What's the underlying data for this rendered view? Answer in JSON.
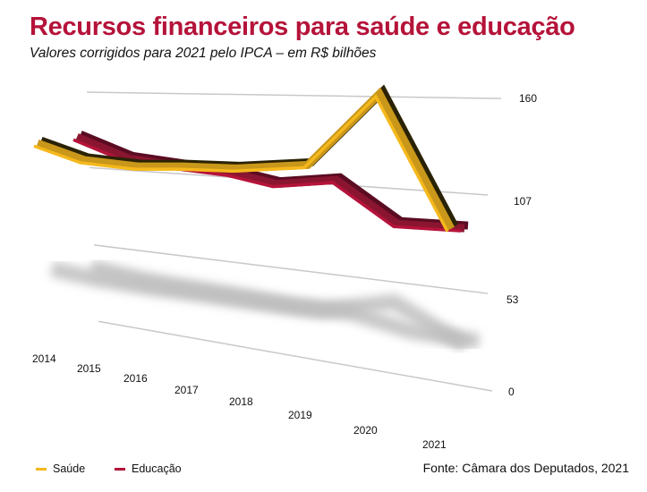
{
  "chart_data": {
    "type": "line",
    "title": "Recursos financeiros para saúde e educação",
    "subtitle": "Valores corrigidos para 2021 pelo IPCA – em R$ bilhões",
    "categories": [
      "2014",
      "2015",
      "2016",
      "2017",
      "2018",
      "2019",
      "2020",
      "2021"
    ],
    "yticks": [
      "0",
      "53",
      "107",
      "160"
    ],
    "ylim": [
      0,
      160
    ],
    "series": [
      {
        "name": "Saúde",
        "color": "#f5b81c",
        "values": [
          120,
          110,
          108,
          110,
          111,
          116,
          160,
          85
        ]
      },
      {
        "name": "Educação",
        "color": "#b5133a",
        "values": [
          126,
          113,
          110,
          108,
          103,
          108,
          85,
          86
        ]
      }
    ],
    "legend": "bottom-left",
    "source": "Fonte: Câmara dos Deputados, 2021"
  }
}
